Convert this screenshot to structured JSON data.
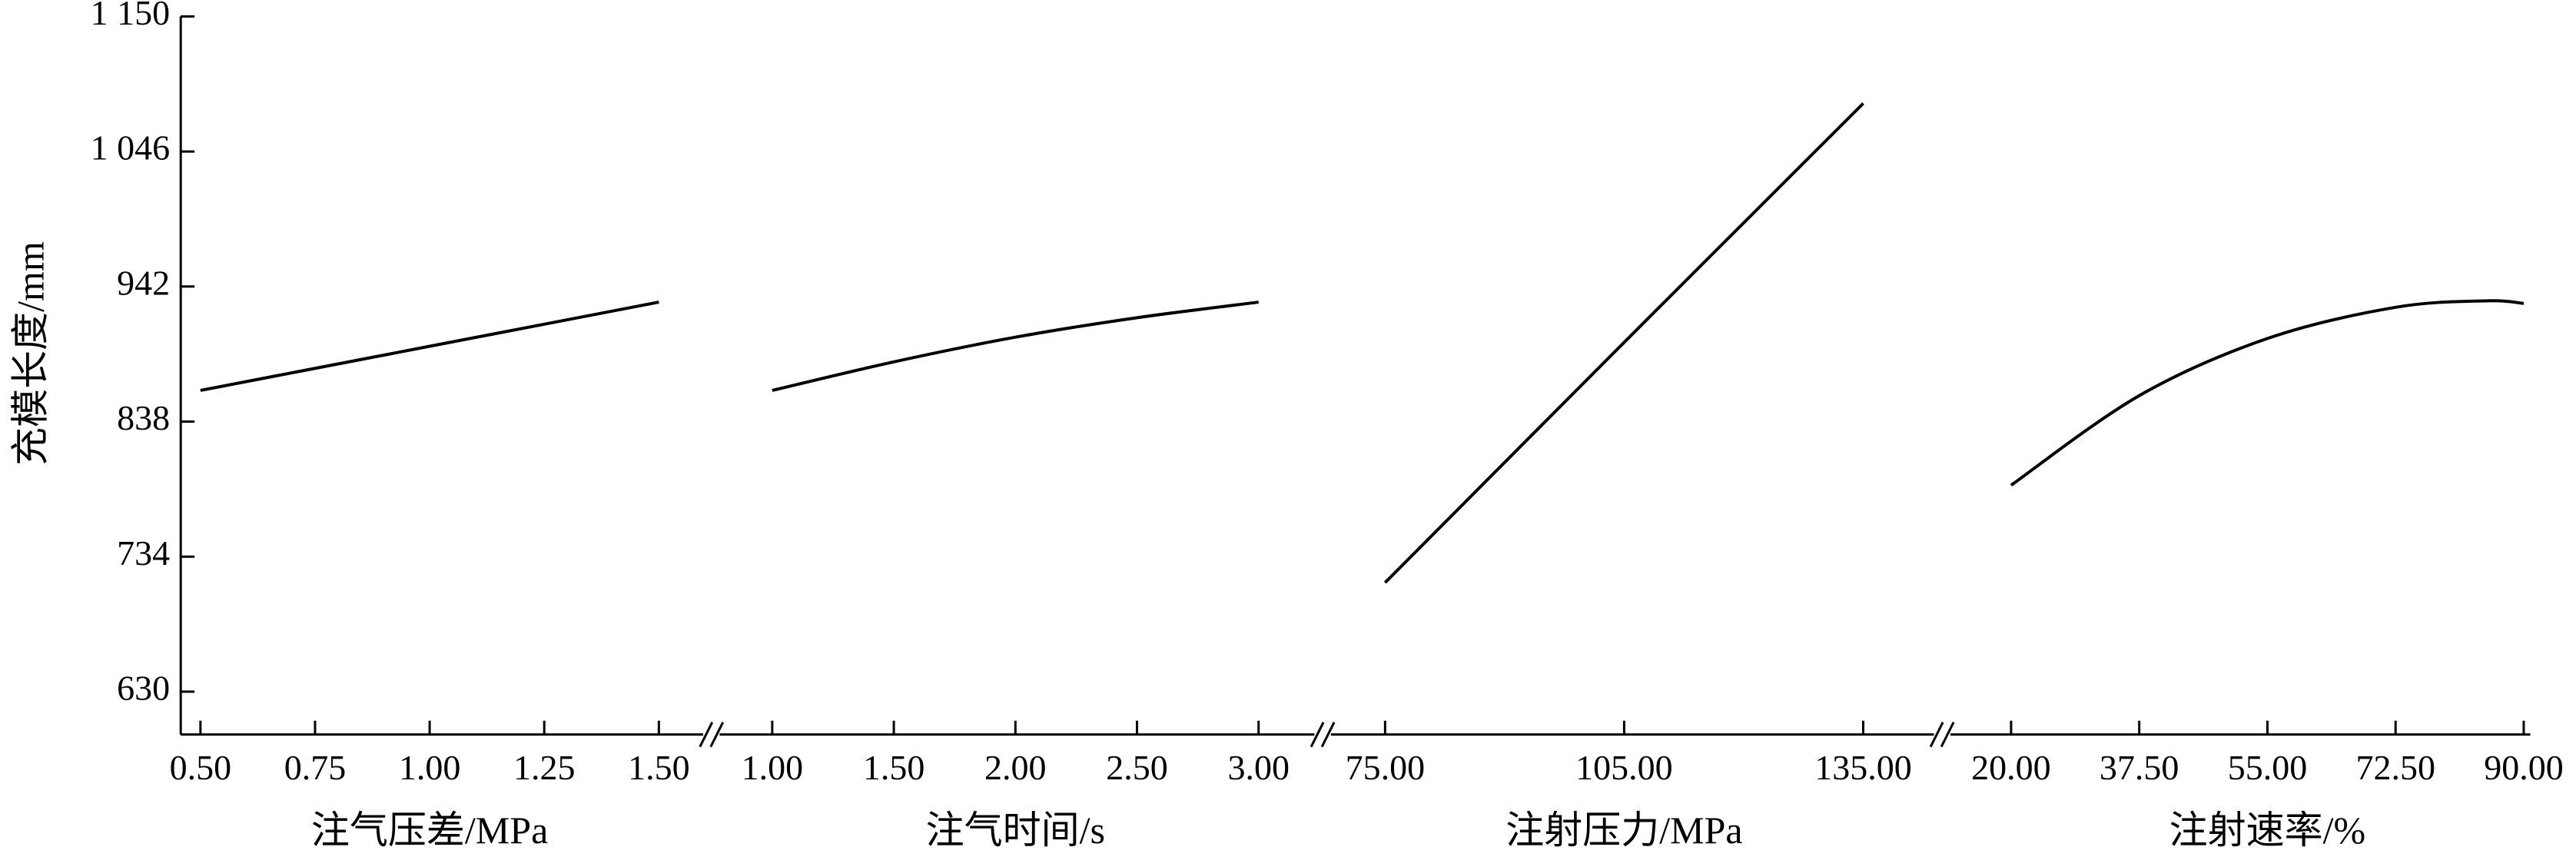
{
  "chart_data": {
    "type": "line",
    "y_label": "充模长度/mm",
    "ylim": [
      597,
      1150
    ],
    "yticks": [
      630,
      734,
      838,
      942,
      {
        "value": 1046,
        "label": "1 046"
      },
      {
        "value": 1150,
        "label": "1 150"
      }
    ],
    "color": "#000000",
    "panels": [
      {
        "x_label": "注气压差/MPa",
        "xlim": [
          0.5,
          1.5
        ],
        "xticks": [
          {
            "value": 0.5,
            "label": "0.50"
          },
          {
            "value": 0.75,
            "label": "0.75"
          },
          {
            "value": 1,
            "label": "1.00"
          },
          {
            "value": 1.25,
            "label": "1.25"
          },
          {
            "value": 1.5,
            "label": "1.50"
          }
        ],
        "x": [
          0.5,
          0.75,
          1,
          1.25,
          1.5
        ],
        "values": [
          862,
          879,
          896,
          913,
          930
        ]
      },
      {
        "x_label": "注气时间/s",
        "xlim": [
          1,
          3
        ],
        "xticks": [
          {
            "value": 1,
            "label": "1.00"
          },
          {
            "value": 1.5,
            "label": "1.50"
          },
          {
            "value": 2,
            "label": "2.00"
          },
          {
            "value": 2.5,
            "label": "2.50"
          },
          {
            "value": 3,
            "label": "3.00"
          }
        ],
        "x": [
          1,
          1.5,
          2,
          2.5,
          3
        ],
        "values": [
          862,
          884,
          903,
          918,
          930
        ]
      },
      {
        "x_label": "注射压力/MPa",
        "xlim": [
          75,
          135
        ],
        "xticks": [
          {
            "value": 75,
            "label": "75.00"
          },
          {
            "value": 105,
            "label": "105.00"
          },
          {
            "value": 135,
            "label": "135.00"
          }
        ],
        "x": [
          75,
          105,
          135
        ],
        "values": [
          714,
          899,
          1083
        ]
      },
      {
        "x_label": "注射速率/%",
        "xlim": [
          20,
          90
        ],
        "xticks": [
          {
            "value": 20,
            "label": "20.00"
          },
          {
            "value": 37.5,
            "label": "37.50"
          },
          {
            "value": 55,
            "label": "55.00"
          },
          {
            "value": 72.5,
            "label": "72.50"
          },
          {
            "value": 90,
            "label": "90.00"
          }
        ],
        "x": [
          20,
          37.5,
          55,
          72.5,
          85,
          90
        ],
        "values": [
          789,
          858,
          902,
          926,
          931,
          929
        ]
      }
    ]
  }
}
